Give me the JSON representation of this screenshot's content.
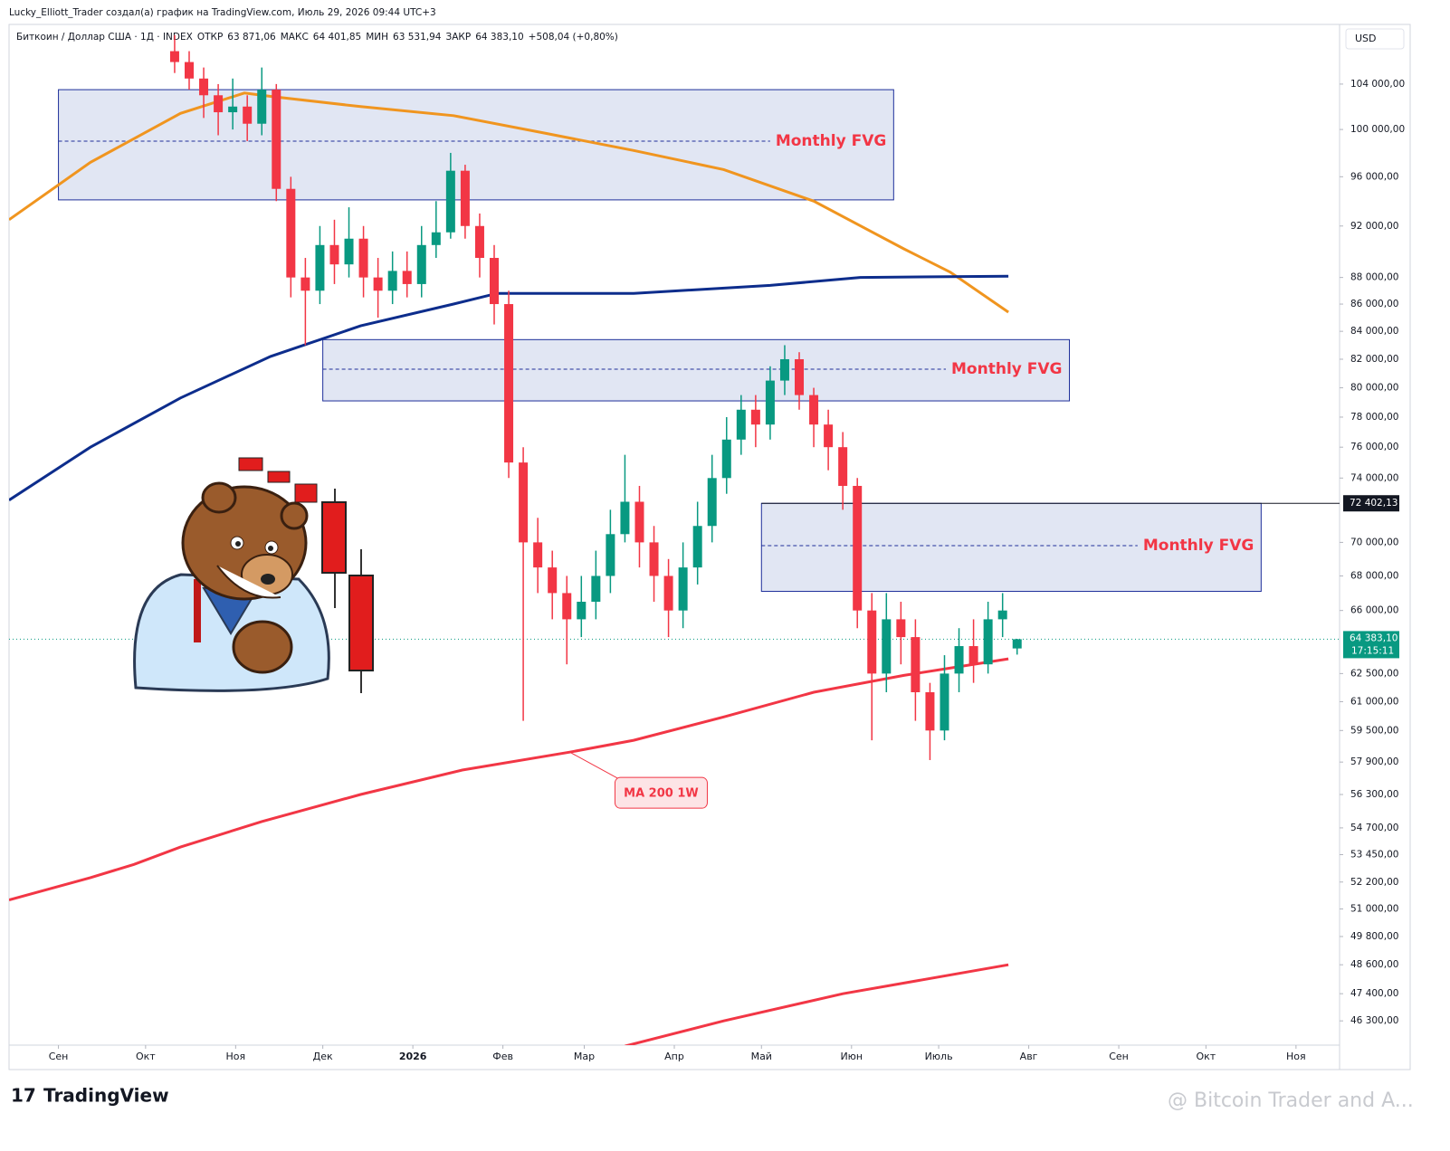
{
  "header": {
    "credit": "Lucky_Elliott_Trader создал(а) график на TradingView.com, Июль 29, 2026 09:44 UTC+3",
    "symbol": "Биткоин / Доллар США · 1Д · INDEX",
    "ohlc": [
      {
        "label": "ОТКР",
        "value": "63 871,06"
      },
      {
        "label": "МАКС",
        "value": "64 401,85"
      },
      {
        "label": "МИН",
        "value": "63 531,94"
      },
      {
        "label": "ЗАКР",
        "value": "64 383,10"
      }
    ],
    "change": "+508,04 (+0,80%)",
    "currency": "USD"
  },
  "footer": {
    "logo": "TradingView",
    "watermark": "@ Bitcoin Trader and A..."
  },
  "chart_data": {
    "type": "candlestick",
    "log_scale": true,
    "up_color": "#089981",
    "down_color": "#f23645",
    "x": [
      40,
      45,
      50,
      55,
      60,
      65,
      70,
      75,
      80,
      85,
      90,
      95,
      100,
      105,
      110,
      115,
      120,
      125,
      130,
      135,
      140,
      145,
      150,
      155,
      160,
      165,
      170,
      175,
      180,
      185,
      190,
      195,
      200,
      205,
      210,
      215,
      220,
      225,
      230,
      235,
      240,
      245,
      250,
      255,
      260,
      265,
      270,
      275,
      280,
      285,
      290,
      295,
      300,
      305,
      310,
      315,
      320,
      325,
      330
    ],
    "open": [
      107000,
      106000,
      104500,
      103000,
      101500,
      102000,
      100500,
      103500,
      95000,
      88000,
      87000,
      90500,
      89000,
      91000,
      88000,
      87000,
      88500,
      87500,
      90500,
      91500,
      96500,
      92000,
      89500,
      86000,
      75000,
      70000,
      68500,
      67000,
      65500,
      66500,
      68000,
      70500,
      72500,
      70000,
      68000,
      66000,
      68500,
      71000,
      74000,
      76500,
      78500,
      77500,
      80500,
      82000,
      79500,
      77500,
      76000,
      73500,
      66000,
      62500,
      65500,
      64500,
      61500,
      59500,
      62500,
      64000,
      63000,
      65500,
      63871.06
    ],
    "high": [
      108500,
      107000,
      105500,
      104000,
      104500,
      103000,
      105500,
      104000,
      96000,
      89500,
      92000,
      92500,
      93500,
      92000,
      89500,
      90000,
      90000,
      92000,
      94000,
      98000,
      97000,
      93000,
      90500,
      87000,
      76000,
      71500,
      69500,
      68000,
      68000,
      69500,
      72000,
      75500,
      73500,
      71000,
      69000,
      70000,
      72500,
      75500,
      78000,
      79500,
      79500,
      81500,
      83000,
      82500,
      80000,
      78500,
      77000,
      74000,
      67000,
      67000,
      66500,
      65500,
      62000,
      63500,
      65000,
      65500,
      66500,
      67000,
      64401.85
    ],
    "low": [
      105000,
      103500,
      101000,
      99500,
      100000,
      99000,
      99500,
      94000,
      86500,
      83000,
      86000,
      87500,
      88000,
      86500,
      85000,
      86000,
      86500,
      86500,
      89500,
      91000,
      91000,
      88000,
      84500,
      74000,
      60000,
      67000,
      65500,
      63000,
      64500,
      65500,
      67000,
      70000,
      68500,
      66500,
      64500,
      65000,
      67500,
      70000,
      73000,
      75500,
      76000,
      76500,
      79500,
      78500,
      76000,
      74500,
      72000,
      65000,
      59000,
      61500,
      63000,
      60000,
      58000,
      59000,
      61500,
      62000,
      62500,
      64500,
      63531.94
    ],
    "close": [
      106000,
      104500,
      103000,
      101500,
      102000,
      100500,
      103500,
      95000,
      88000,
      87000,
      90500,
      89000,
      91000,
      88000,
      87000,
      88500,
      87500,
      90500,
      91500,
      96500,
      92000,
      89500,
      86000,
      75000,
      70000,
      68500,
      67000,
      65500,
      66500,
      68000,
      70500,
      72500,
      70000,
      68000,
      66000,
      68500,
      71000,
      74000,
      76500,
      78500,
      77500,
      80500,
      82000,
      79500,
      77500,
      76000,
      73500,
      66000,
      62500,
      65500,
      64500,
      61500,
      59500,
      62500,
      64000,
      63000,
      65500,
      66000,
      64383.1
    ],
    "lines": [
      {
        "color": "#f0951f",
        "x": [
          -17,
          11,
          42,
          64,
          73,
          104,
          136,
          167,
          198,
          229,
          260,
          291,
          307,
          327
        ],
        "values": [
          92500,
          97200,
          101400,
          103200,
          102900,
          102000,
          101200,
          99700,
          98200,
          96600,
          94000,
          90200,
          88400,
          85400
        ]
      },
      {
        "color": "#0d2d8c",
        "x": [
          -17,
          11,
          42,
          73,
          104,
          136,
          151,
          198,
          245,
          276,
          327
        ],
        "values": [
          72600,
          76000,
          79300,
          82200,
          84400,
          86000,
          86800,
          86800,
          87400,
          88000,
          88100
        ]
      },
      {
        "color": "#f23645",
        "x": [
          -17,
          11,
          26,
          42,
          70,
          104,
          139,
          176,
          198,
          229,
          260,
          291,
          327
        ],
        "values": [
          51400,
          52400,
          53000,
          53800,
          55000,
          56300,
          57500,
          58400,
          59000,
          60200,
          61500,
          62400,
          63300
        ]
      },
      {
        "color": "#f23645",
        "x": [
          195,
          229,
          270,
          327
        ],
        "values": [
          45300,
          46300,
          47400,
          48600
        ]
      }
    ],
    "annotation": "MA 200 1W",
    "zones": [
      {
        "label": "Monthly FVG",
        "xlim": [
          0,
          287.5
        ],
        "ylim": [
          94100,
          103500
        ],
        "mid": 99000
      },
      {
        "label": "Monthly FVG",
        "xlim": [
          91,
          348
        ],
        "ylim": [
          79100,
          83400
        ],
        "mid": 81300
      },
      {
        "label": "Monthly FVG",
        "xlim": [
          242,
          414
        ],
        "ylim": [
          67100,
          72400
        ],
        "mid": 69800
      }
    ],
    "level": {
      "value": 72402.13,
      "label": "72 402,13"
    },
    "last_price": {
      "value": 64383.1,
      "label": "64 383,10"
    },
    "countdown": "17:15:11",
    "xlim": [
      -17,
      441
    ],
    "ylim": [
      45340,
      109500
    ],
    "xticks": [
      {
        "value": 0,
        "label": "Сен"
      },
      {
        "value": 30,
        "label": "Окт"
      },
      {
        "value": 61,
        "label": "Ноя"
      },
      {
        "value": 91,
        "label": "Дек"
      },
      {
        "value": 122,
        "label": "2026"
      },
      {
        "value": 153,
        "label": "Фев"
      },
      {
        "value": 181,
        "label": "Мар"
      },
      {
        "value": 212,
        "label": "Апр"
      },
      {
        "value": 242,
        "label": "Май"
      },
      {
        "value": 273,
        "label": "Июн"
      },
      {
        "value": 303,
        "label": "Июль"
      },
      {
        "value": 334,
        "label": "Авг"
      },
      {
        "value": 365,
        "label": "Сен"
      },
      {
        "value": 395,
        "label": "Окт"
      },
      {
        "value": 426,
        "label": "Ноя"
      }
    ],
    "yticks": [
      {
        "value": 104000,
        "label": "104 000,00"
      },
      {
        "value": 100000,
        "label": "100 000,00"
      },
      {
        "value": 96000,
        "label": "96 000,00"
      },
      {
        "value": 92000,
        "label": "92 000,00"
      },
      {
        "value": 88000,
        "label": "88 000,00"
      },
      {
        "value": 86000,
        "label": "86 000,00"
      },
      {
        "value": 84000,
        "label": "84 000,00"
      },
      {
        "value": 82000,
        "label": "82 000,00"
      },
      {
        "value": 80000,
        "label": "80 000,00"
      },
      {
        "value": 78000,
        "label": "78 000,00"
      },
      {
        "value": 76000,
        "label": "76 000,00"
      },
      {
        "value": 74000,
        "label": "74 000,00"
      },
      {
        "value": 70000,
        "label": "70 000,00"
      },
      {
        "value": 68000,
        "label": "68 000,00"
      },
      {
        "value": 66000,
        "label": "66 000,00"
      },
      {
        "value": 62500,
        "label": "62 500,00"
      },
      {
        "value": 61000,
        "label": "61 000,00"
      },
      {
        "value": 59500,
        "label": "59 500,00"
      },
      {
        "value": 57900,
        "label": "57 900,00"
      },
      {
        "value": 56300,
        "label": "56 300,00"
      },
      {
        "value": 54700,
        "label": "54 700,00"
      },
      {
        "value": 53450,
        "label": "53 450,00"
      },
      {
        "value": 52200,
        "label": "52 200,00"
      },
      {
        "value": 51000,
        "label": "51 000,00"
      },
      {
        "value": 49800,
        "label": "49 800,00"
      },
      {
        "value": 48600,
        "label": "48 600,00"
      },
      {
        "value": 47400,
        "label": "47 400,00"
      },
      {
        "value": 46300,
        "label": "46 300,00"
      }
    ]
  }
}
